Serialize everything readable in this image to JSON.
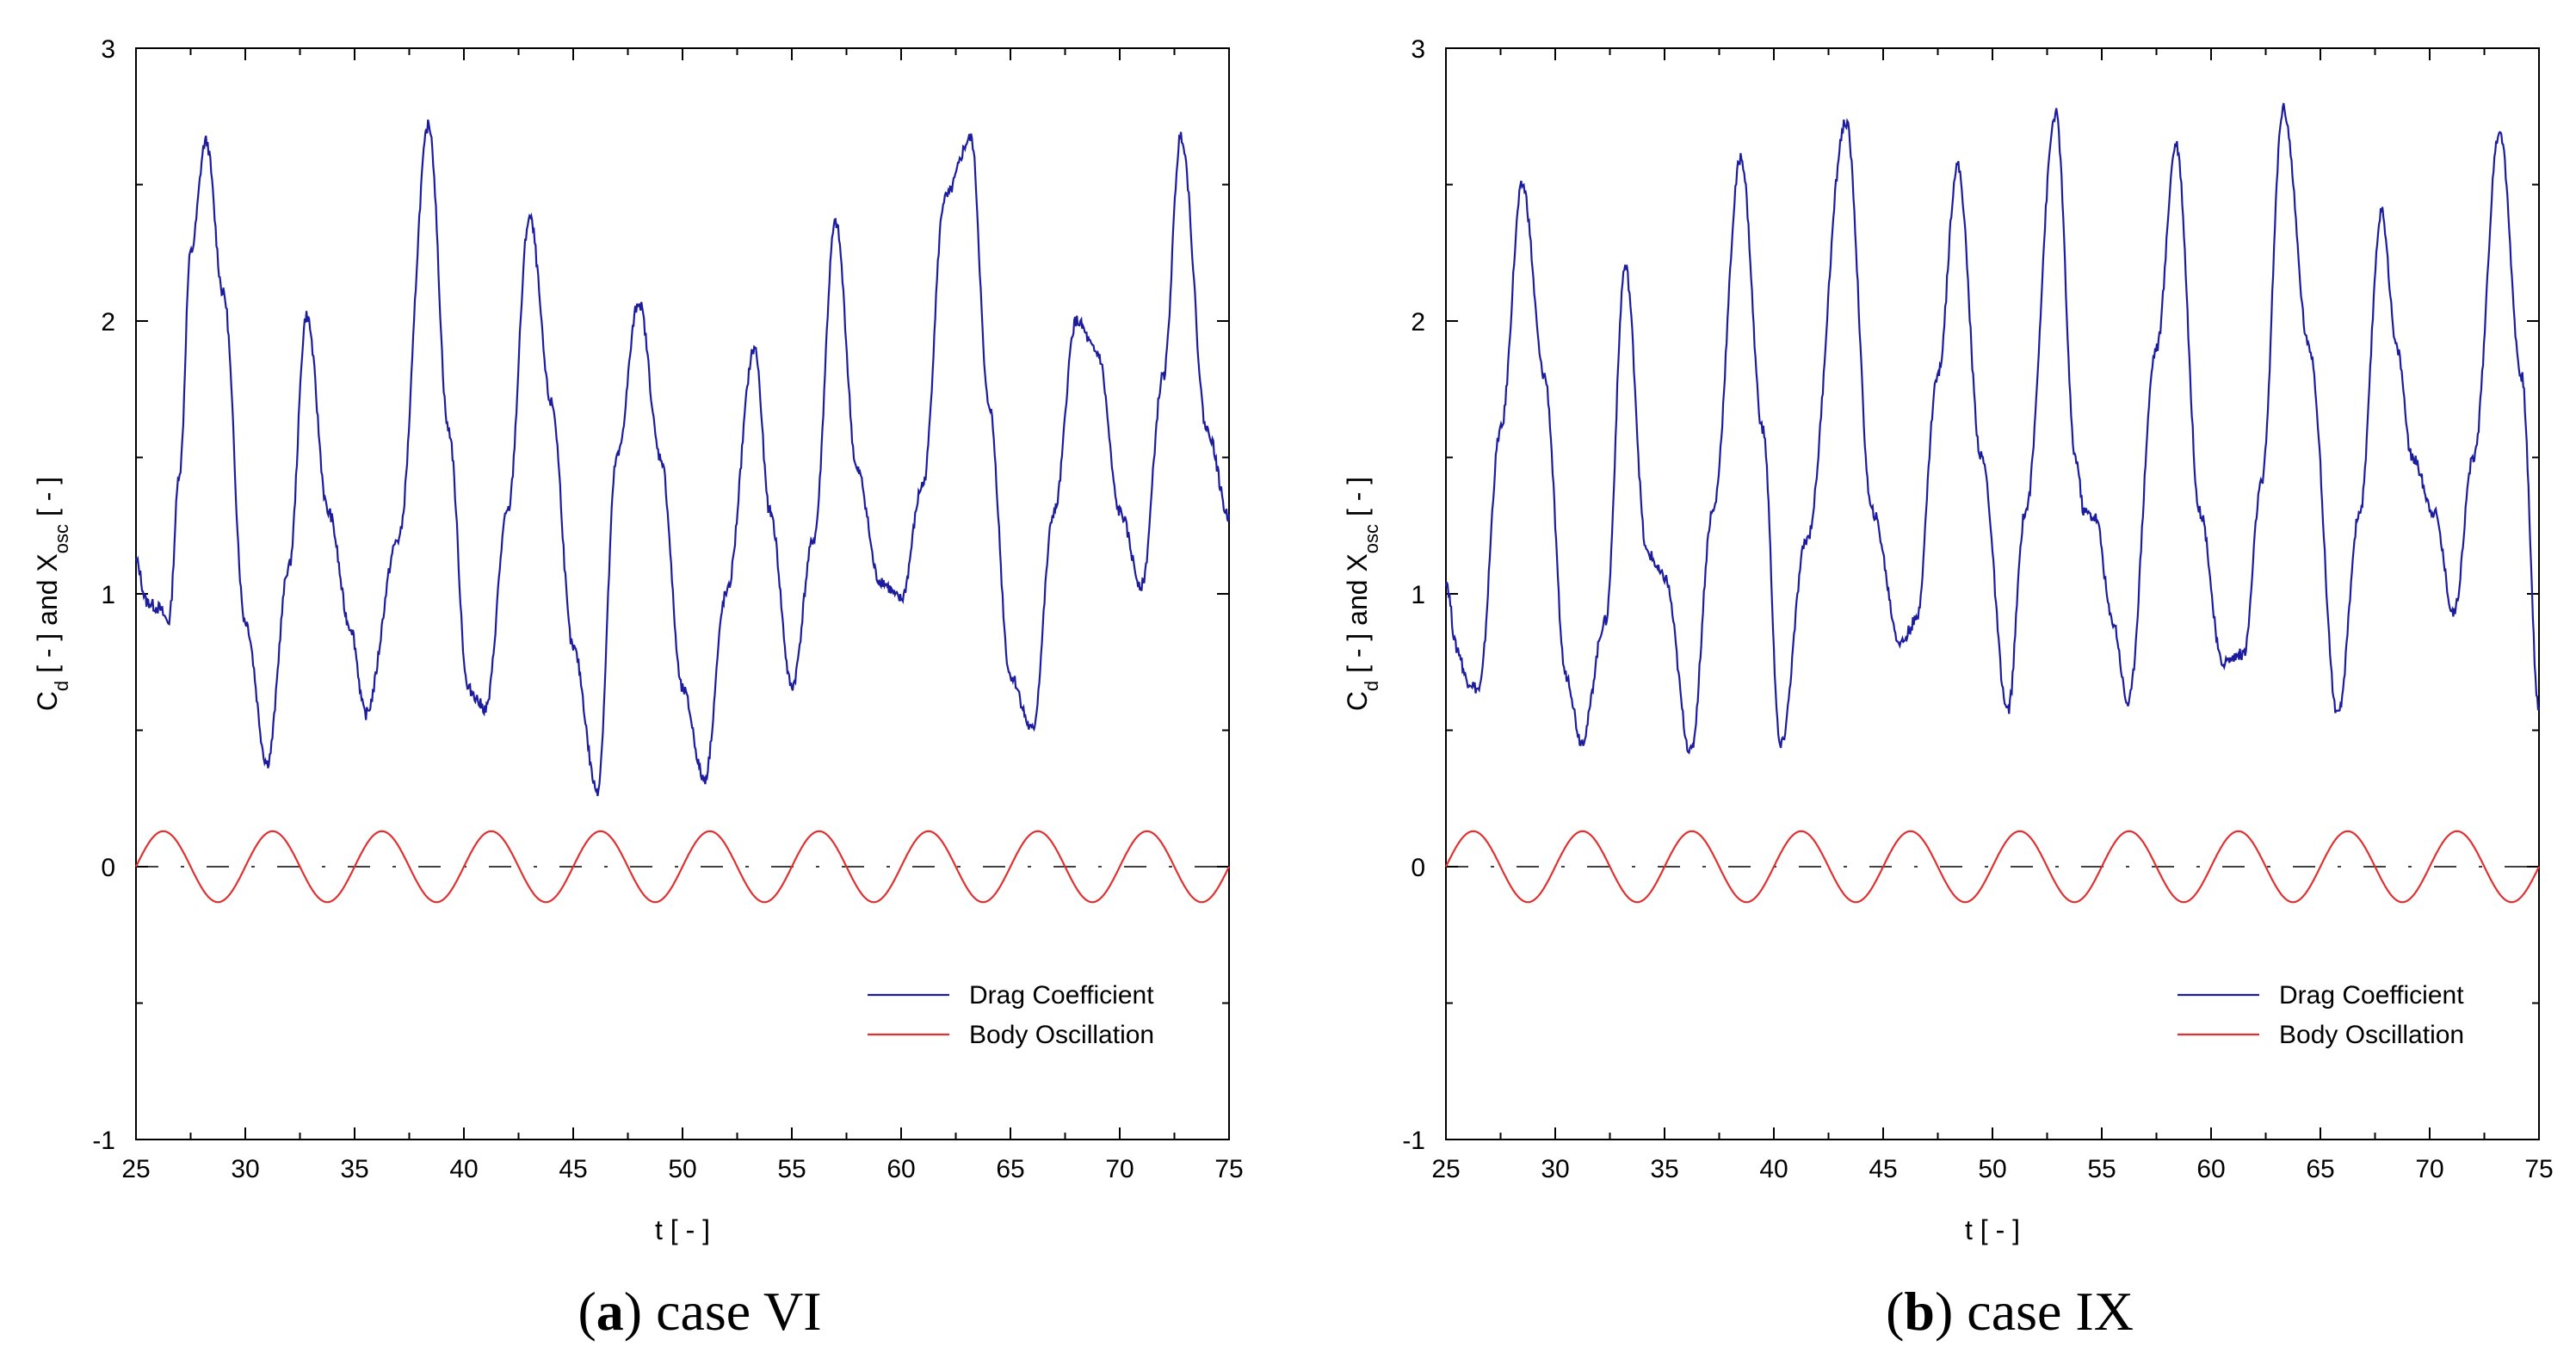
{
  "chart_data": [
    {
      "type": "line",
      "xlabel": "t [ - ]",
      "ylabel": {
        "c": "C",
        "c_sub": "d",
        "mid": " [ - ] and X",
        "x_sub": "osc",
        "end": " [ - ]"
      },
      "xlim": [
        25,
        75
      ],
      "ylim": [
        -1,
        3
      ],
      "xticks": [
        "25",
        "30",
        "35",
        "40",
        "45",
        "50",
        "55",
        "60",
        "65",
        "70",
        "75"
      ],
      "yticks": [
        "-1",
        "0",
        "1",
        "2",
        "3"
      ],
      "grid": false,
      "legend": "lower-right",
      "caption": {
        "letter": "a",
        "text": "case VI"
      },
      "series": [
        {
          "name": "Drag Coefficient",
          "color": "#1c1c9e",
          "x": [
            25,
            25.5,
            26,
            26.5,
            27,
            27.5,
            28.2,
            29,
            30,
            31,
            32,
            32.8,
            33.8,
            34.8,
            35.5,
            37,
            38.4,
            39.3,
            40.2,
            41,
            42,
            43,
            44,
            45,
            46.1,
            47,
            48,
            49,
            50,
            51,
            52,
            53.3,
            54,
            55,
            56,
            57,
            58,
            59,
            60,
            61,
            62,
            63.2,
            64,
            65,
            66,
            67,
            68,
            69,
            70,
            71,
            72,
            72.8,
            74,
            75
          ],
          "y": [
            1.12,
            0.97,
            0.95,
            0.9,
            1.45,
            2.25,
            2.66,
            2.1,
            0.9,
            0.38,
            1.1,
            2.02,
            1.3,
            0.88,
            0.56,
            1.2,
            2.72,
            1.6,
            0.65,
            0.58,
            1.3,
            2.38,
            1.7,
            0.8,
            0.28,
            1.5,
            2.07,
            1.5,
            0.65,
            0.32,
            1.0,
            1.9,
            1.3,
            0.66,
            1.2,
            2.36,
            1.45,
            1.05,
            0.98,
            1.4,
            2.45,
            2.67,
            1.7,
            0.7,
            0.5,
            1.3,
            2.0,
            1.88,
            1.3,
            1.03,
            1.8,
            2.68,
            1.6,
            1.28
          ]
        },
        {
          "name": "Body Oscillation",
          "color": "#e03030",
          "amplitude": 0.13,
          "period": 5.0,
          "phase_offset": 0.5
        }
      ]
    },
    {
      "type": "line",
      "xlabel": "t [ - ]",
      "ylabel": {
        "c": "C",
        "c_sub": "d",
        "mid": " [ - ] and X",
        "x_sub": "osc",
        "end": " [ - ]"
      },
      "xlim": [
        25,
        75
      ],
      "ylim": [
        -1,
        3
      ],
      "xticks": [
        "25",
        "30",
        "35",
        "40",
        "45",
        "50",
        "55",
        "60",
        "65",
        "70",
        "75"
      ],
      "yticks": [
        "-1",
        "0",
        "1",
        "2",
        "3"
      ],
      "grid": false,
      "legend": "lower-right",
      "caption": {
        "letter": "b",
        "text": "case IX"
      },
      "series": [
        {
          "name": "Drag Coefficient",
          "color": "#1c1c9e",
          "x": [
            25,
            25.5,
            26,
            26.5,
            27.5,
            28.5,
            29.5,
            30.5,
            31.2,
            32.3,
            33.2,
            34.2,
            35,
            36.2,
            37.2,
            38.5,
            39.5,
            40.3,
            41.5,
            43.3,
            44.5,
            45.8,
            46.5,
            47.5,
            48.4,
            49.5,
            50.7,
            51.5,
            52.9,
            53.8,
            54.2,
            54.7,
            55.5,
            56.2,
            57.5,
            58.4,
            59.5,
            60.5,
            61.5,
            62.3,
            63.3,
            64.5,
            65.8,
            66.8,
            67.8,
            68.5,
            69.2,
            70.2,
            71.1,
            72,
            73.2,
            74.2,
            75
          ],
          "y": [
            1.05,
            0.8,
            0.68,
            0.65,
            1.6,
            2.5,
            1.8,
            0.7,
            0.46,
            0.9,
            2.2,
            1.15,
            1.06,
            0.42,
            1.3,
            2.6,
            1.6,
            0.44,
            1.2,
            2.73,
            1.3,
            0.82,
            0.9,
            1.8,
            2.57,
            1.5,
            0.57,
            1.3,
            2.76,
            1.5,
            1.3,
            1.28,
            0.9,
            0.6,
            1.9,
            2.65,
            1.3,
            0.75,
            0.78,
            1.4,
            2.78,
            1.9,
            0.55,
            1.3,
            2.4,
            1.9,
            1.5,
            1.3,
            0.93,
            1.5,
            2.7,
            1.8,
            0.58
          ]
        },
        {
          "name": "Body Oscillation",
          "color": "#e03030",
          "amplitude": 0.13,
          "period": 5.0,
          "phase_offset": 0.5
        }
      ]
    }
  ]
}
